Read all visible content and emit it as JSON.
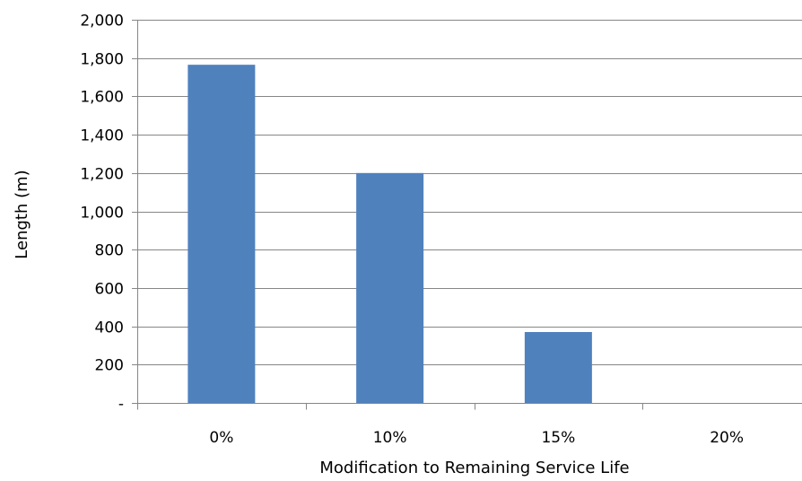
{
  "chart_data": {
    "type": "bar",
    "title": "",
    "xlabel": "Modification to Remaining Service Life",
    "ylabel": "Length (m)",
    "categories": [
      "0%",
      "10%",
      "15%",
      "20%"
    ],
    "values": [
      1765,
      1200,
      370,
      0
    ],
    "ylim": [
      0,
      2000
    ],
    "ytick_values": [
      0,
      200,
      400,
      600,
      800,
      1000,
      1200,
      1400,
      1600,
      1800,
      2000
    ],
    "ytick_labels": [
      "-",
      "200",
      "400",
      "600",
      "800",
      "1,000",
      "1,200",
      "1,400",
      "1,600",
      "1,800",
      "2,000"
    ],
    "grid": true,
    "legend": "none",
    "colors": {
      "bar": "#4f81bd",
      "grid": "#868686",
      "axis": "#868686"
    }
  }
}
